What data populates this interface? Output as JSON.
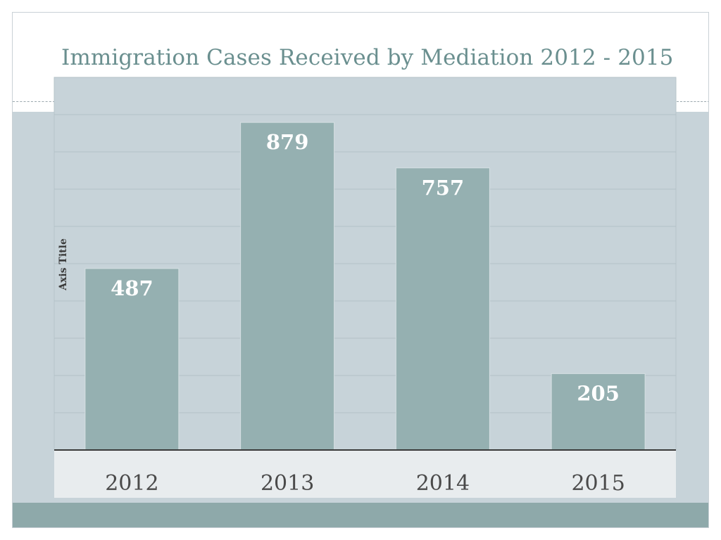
{
  "slide": {
    "title": "Immigration Cases Received by Mediation 2012 - 2015"
  },
  "colors": {
    "bar_fill": "#95b0b1",
    "plot_background": "#c7d3d9",
    "category_band": "#e8ecee",
    "data_label": "#ffffff",
    "tick_label": "#4a4a4a",
    "title": "#6a8f8f",
    "footer_band": "#8ea9aa"
  },
  "chart_data": {
    "type": "bar",
    "title": "Immigration Cases Received by Mediation 2012 - 2015",
    "categories": [
      "2012",
      "2013",
      "2014",
      "2015"
    ],
    "values": [
      487,
      879,
      757,
      205
    ],
    "xlabel": "",
    "ylabel": "Axis Title",
    "ylim": [
      0,
      1000
    ],
    "grid": true,
    "legend": "none",
    "data_labels": true
  }
}
